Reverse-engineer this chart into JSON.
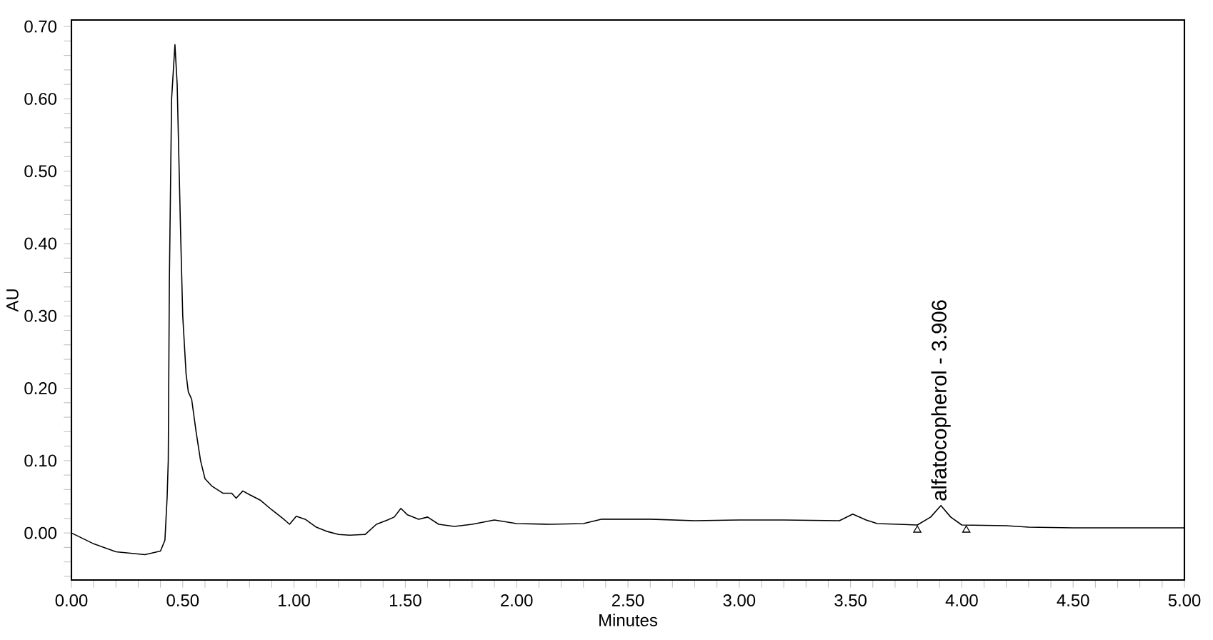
{
  "chart_data": {
    "type": "line",
    "xlabel": "Minutes",
    "ylabel": "AU",
    "xlim": [
      0,
      5
    ],
    "ylim": [
      -0.065,
      0.709
    ],
    "xticks": [
      {
        "value": 0,
        "label": "0.00"
      },
      {
        "value": 0.1,
        "label": null
      },
      {
        "value": 0.2,
        "label": null
      },
      {
        "value": 0.3,
        "label": null
      },
      {
        "value": 0.4,
        "label": null
      },
      {
        "value": 0.5,
        "label": "0.50"
      },
      {
        "value": 0.6,
        "label": null
      },
      {
        "value": 0.7,
        "label": null
      },
      {
        "value": 0.8,
        "label": null
      },
      {
        "value": 0.9,
        "label": null
      },
      {
        "value": 1,
        "label": "1.00"
      },
      {
        "value": 1.1,
        "label": null
      },
      {
        "value": 1.2,
        "label": null
      },
      {
        "value": 1.3,
        "label": null
      },
      {
        "value": 1.4,
        "label": null
      },
      {
        "value": 1.5,
        "label": "1.50"
      },
      {
        "value": 1.6,
        "label": null
      },
      {
        "value": 1.7,
        "label": null
      },
      {
        "value": 1.8,
        "label": null
      },
      {
        "value": 1.9,
        "label": null
      },
      {
        "value": 2,
        "label": "2.00"
      },
      {
        "value": 2.1,
        "label": null
      },
      {
        "value": 2.2,
        "label": null
      },
      {
        "value": 2.3,
        "label": null
      },
      {
        "value": 2.4,
        "label": null
      },
      {
        "value": 2.5,
        "label": "2.50"
      },
      {
        "value": 2.6,
        "label": null
      },
      {
        "value": 2.7,
        "label": null
      },
      {
        "value": 2.8,
        "label": null
      },
      {
        "value": 2.9,
        "label": null
      },
      {
        "value": 3,
        "label": "3.00"
      },
      {
        "value": 3.1,
        "label": null
      },
      {
        "value": 3.2,
        "label": null
      },
      {
        "value": 3.3,
        "label": null
      },
      {
        "value": 3.4,
        "label": null
      },
      {
        "value": 3.5,
        "label": "3.50"
      },
      {
        "value": 3.6,
        "label": null
      },
      {
        "value": 3.7,
        "label": null
      },
      {
        "value": 3.8,
        "label": null
      },
      {
        "value": 3.9,
        "label": null
      },
      {
        "value": 4,
        "label": "4.00"
      },
      {
        "value": 4.1,
        "label": null
      },
      {
        "value": 4.2,
        "label": null
      },
      {
        "value": 4.3,
        "label": null
      },
      {
        "value": 4.4,
        "label": null
      },
      {
        "value": 4.5,
        "label": "4.50"
      },
      {
        "value": 4.6,
        "label": null
      },
      {
        "value": 4.7,
        "label": null
      },
      {
        "value": 4.8,
        "label": null
      },
      {
        "value": 4.9,
        "label": null
      },
      {
        "value": 5,
        "label": "5.00"
      }
    ],
    "yticks": [
      {
        "value": -0.06,
        "label": null
      },
      {
        "value": -0.04,
        "label": null
      },
      {
        "value": -0.02,
        "label": null
      },
      {
        "value": 0,
        "label": "0.00"
      },
      {
        "value": 0.02,
        "label": null
      },
      {
        "value": 0.04,
        "label": null
      },
      {
        "value": 0.06,
        "label": null
      },
      {
        "value": 0.08,
        "label": null
      },
      {
        "value": 0.1,
        "label": "0.10"
      },
      {
        "value": 0.12,
        "label": null
      },
      {
        "value": 0.14,
        "label": null
      },
      {
        "value": 0.16,
        "label": null
      },
      {
        "value": 0.18,
        "label": null
      },
      {
        "value": 0.2,
        "label": "0.20"
      },
      {
        "value": 0.22,
        "label": null
      },
      {
        "value": 0.24,
        "label": null
      },
      {
        "value": 0.26,
        "label": null
      },
      {
        "value": 0.28,
        "label": null
      },
      {
        "value": 0.3,
        "label": "0.30"
      },
      {
        "value": 0.32,
        "label": null
      },
      {
        "value": 0.34,
        "label": null
      },
      {
        "value": 0.36,
        "label": null
      },
      {
        "value": 0.38,
        "label": null
      },
      {
        "value": 0.4,
        "label": "0.40"
      },
      {
        "value": 0.42,
        "label": null
      },
      {
        "value": 0.44,
        "label": null
      },
      {
        "value": 0.46,
        "label": null
      },
      {
        "value": 0.48,
        "label": null
      },
      {
        "value": 0.5,
        "label": "0.50"
      },
      {
        "value": 0.52,
        "label": null
      },
      {
        "value": 0.54,
        "label": null
      },
      {
        "value": 0.56,
        "label": null
      },
      {
        "value": 0.58,
        "label": null
      },
      {
        "value": 0.6,
        "label": "0.60"
      },
      {
        "value": 0.62,
        "label": null
      },
      {
        "value": 0.64,
        "label": null
      },
      {
        "value": 0.66,
        "label": null
      },
      {
        "value": 0.68,
        "label": null
      },
      {
        "value": 0.7,
        "label": "0.70"
      }
    ],
    "grid": false,
    "line_style": "solid",
    "series": [
      {
        "color": "#000000",
        "marker": "none",
        "x": [
          0,
          0.1,
          0.2,
          0.33,
          0.4,
          0.42,
          0.43,
          0.435,
          0.44,
          0.45,
          0.465,
          0.475,
          0.49,
          0.5,
          0.515,
          0.525,
          0.54,
          0.56,
          0.58,
          0.6,
          0.63,
          0.68,
          0.72,
          0.74,
          0.77,
          0.8,
          0.85,
          0.9,
          0.95,
          0.98,
          1.01,
          1.05,
          1.1,
          1.15,
          1.2,
          1.25,
          1.32,
          1.37,
          1.42,
          1.45,
          1.48,
          1.51,
          1.56,
          1.6,
          1.65,
          1.72,
          1.8,
          1.9,
          2.0,
          2.15,
          2.3,
          2.38,
          2.6,
          2.8,
          3.0,
          3.2,
          3.45,
          3.51,
          3.57,
          3.62,
          3.8,
          3.86,
          3.906,
          3.95,
          4.0,
          4.2,
          4.3,
          4.5,
          5.0
        ],
        "values": [
          0.0,
          -0.015,
          -0.026,
          -0.03,
          -0.025,
          -0.01,
          0.05,
          0.1,
          0.35,
          0.6,
          0.675,
          0.62,
          0.42,
          0.3,
          0.22,
          0.195,
          0.185,
          0.14,
          0.1,
          0.075,
          0.065,
          0.055,
          0.055,
          0.048,
          0.058,
          0.053,
          0.045,
          0.032,
          0.02,
          0.012,
          0.023,
          0.019,
          0.008,
          0.002,
          -0.002,
          -0.003,
          -0.002,
          0.012,
          0.018,
          0.022,
          0.034,
          0.025,
          0.019,
          0.022,
          0.012,
          0.009,
          0.012,
          0.018,
          0.013,
          0.012,
          0.013,
          0.019,
          0.019,
          0.017,
          0.018,
          0.018,
          0.017,
          0.026,
          0.018,
          0.013,
          0.011,
          0.022,
          0.038,
          0.022,
          0.011,
          0.01,
          0.008,
          0.007,
          0.007
        ]
      },
      {
        "type": "scatter",
        "color": "#000000",
        "marker": "triangle",
        "x": [
          3.8,
          4.02
        ],
        "values": [
          0.004,
          0.004
        ]
      }
    ],
    "annotations": [
      {
        "text": "alfatocopherol - 3.906",
        "x": 3.906,
        "y": 0.038
      }
    ]
  }
}
